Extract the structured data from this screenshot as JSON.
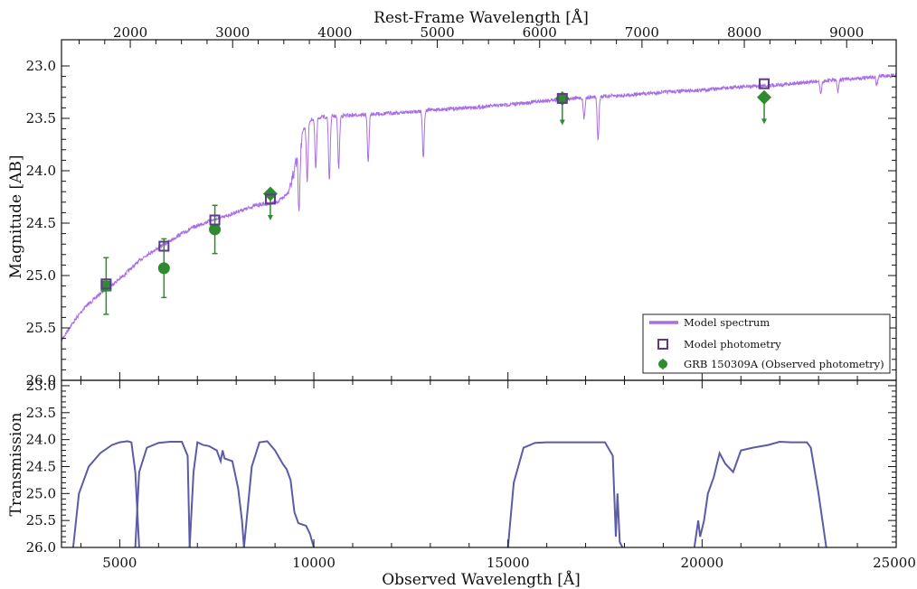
{
  "chart_data": {
    "type": "scatter",
    "top_axis_label": "Rest-Frame Wavelength [Å]",
    "xlabel": "Observed Wavelength [Å]",
    "ylabel_top": "Magnitude [AB]",
    "ylabel_bottom": "Transmission",
    "xlim": [
      3500,
      25000
    ],
    "ylim_top": [
      26.0,
      22.75
    ],
    "ylim_bottom": [
      26.0,
      22.9
    ],
    "bottom_x_ticks": [
      5000,
      10000,
      15000,
      20000,
      25000
    ],
    "top_x_ticks": [
      2000,
      3000,
      4000,
      5000,
      6000,
      7000,
      8000,
      9000
    ],
    "redshift_factor": 2.636,
    "top_y_ticks": [
      23.0,
      23.5,
      24.0,
      24.5,
      25.0,
      25.5,
      26.0
    ],
    "bottom_y_ticks": [
      23.0,
      23.5,
      24.0,
      24.5,
      25.0,
      25.5,
      26.0
    ],
    "colors": {
      "model_spectrum": "#a96ee6",
      "model_photometry": "#5e3a8c",
      "observed": "#2e8b2e",
      "transmission": "#5b5ba8"
    },
    "legend": {
      "placement": "lower-right",
      "entries": [
        "Model spectrum",
        "Model photometry",
        "GRB 150309A (Observed photometry)"
      ]
    },
    "model_spectrum": {
      "x": [
        3500,
        3700,
        3900,
        4100,
        4300,
        4500,
        4700,
        4900,
        5100,
        5300,
        5500,
        5700,
        5900,
        6100,
        6300,
        6500,
        6700,
        6900,
        7100,
        7300,
        7500,
        7700,
        7900,
        8100,
        8300,
        8500,
        8700,
        8900,
        9050,
        9200,
        9350,
        9450,
        9550,
        9650,
        9750,
        9850,
        10000,
        10200,
        10500,
        11000,
        11500,
        12000,
        12500,
        13000,
        13500,
        14000,
        15000,
        16000,
        17000,
        18000,
        19000,
        20000,
        21000,
        21500,
        22000,
        22500,
        23000,
        23500,
        24000,
        24500,
        25000
      ],
      "y": [
        25.62,
        25.5,
        25.4,
        25.3,
        25.24,
        25.17,
        25.12,
        25.06,
        25.0,
        24.93,
        24.86,
        24.8,
        24.76,
        24.71,
        24.67,
        24.62,
        24.58,
        24.54,
        24.51,
        24.48,
        24.46,
        24.44,
        24.41,
        24.38,
        24.36,
        24.33,
        24.32,
        24.31,
        24.3,
        24.26,
        24.2,
        24.0,
        23.85,
        23.7,
        23.6,
        23.53,
        23.5,
        23.49,
        23.48,
        23.47,
        23.46,
        23.45,
        23.44,
        23.42,
        23.41,
        23.4,
        23.37,
        23.33,
        23.3,
        23.28,
        23.25,
        23.23,
        23.2,
        23.19,
        23.18,
        23.16,
        23.15,
        23.13,
        23.12,
        23.1,
        23.09
      ]
    },
    "absorption_lines": [
      {
        "x": 9620,
        "depth": 0.6
      },
      {
        "x": 9830,
        "depth": 0.55
      },
      {
        "x": 10050,
        "depth": 0.48
      },
      {
        "x": 10400,
        "depth": 0.6
      },
      {
        "x": 10640,
        "depth": 0.5
      },
      {
        "x": 11400,
        "depth": 0.45
      },
      {
        "x": 12820,
        "depth": 0.44
      },
      {
        "x": 17320,
        "depth": 0.42
      },
      {
        "x": 16960,
        "depth": 0.2
      },
      {
        "x": 23060,
        "depth": 0.12
      },
      {
        "x": 23500,
        "depth": 0.12
      },
      {
        "x": 24500,
        "depth": 0.08
      }
    ],
    "model_photometry": {
      "x": [
        4650,
        6140,
        7450,
        8880,
        16400,
        21600
      ],
      "y": [
        25.08,
        24.72,
        24.47,
        24.27,
        23.31,
        23.17
      ]
    },
    "observed_photometry": {
      "points": [
        {
          "x": 4650,
          "y": 25.1,
          "err": 0.27,
          "marker": "square"
        },
        {
          "x": 6140,
          "y": 24.93,
          "err": 0.28,
          "marker": "circle"
        },
        {
          "x": 7450,
          "y": 24.56,
          "err": 0.23,
          "marker": "circle"
        },
        {
          "x": 8880,
          "y": 24.22,
          "err": 0.1,
          "marker": "diamond",
          "upper_limit": true
        },
        {
          "x": 16400,
          "y": 23.31,
          "err": 0.1,
          "marker": "diamond",
          "upper_limit": true
        },
        {
          "x": 21600,
          "y": 23.3,
          "err": 0.1,
          "marker": "diamond",
          "upper_limit": true
        }
      ]
    },
    "transmission_curves": [
      {
        "x": [
          3800,
          3950,
          4200,
          4500,
          4800,
          5000,
          5200,
          5300,
          5400,
          5500
        ],
        "y": [
          26.0,
          25.0,
          24.5,
          24.25,
          24.1,
          24.05,
          24.03,
          24.05,
          24.6,
          26.0
        ]
      },
      {
        "x": [
          5400,
          5500,
          5700,
          6000,
          6300,
          6600,
          6750,
          6800
        ],
        "y": [
          26.0,
          24.6,
          24.15,
          24.06,
          24.04,
          24.04,
          24.3,
          26.0
        ]
      },
      {
        "x": [
          6800,
          6900,
          7000,
          7150,
          7300,
          7500,
          7600,
          7650,
          7700,
          7900,
          8050,
          8150,
          8200
        ],
        "y": [
          26.0,
          24.6,
          24.05,
          24.1,
          24.12,
          24.2,
          24.4,
          24.2,
          24.35,
          24.4,
          24.9,
          25.5,
          26.0
        ]
      },
      {
        "x": [
          8200,
          8400,
          8600,
          8800,
          9000,
          9200,
          9300,
          9400,
          9500,
          9600,
          9800,
          9900,
          10000
        ],
        "y": [
          26.0,
          24.5,
          24.05,
          24.03,
          24.2,
          24.45,
          24.55,
          24.75,
          25.35,
          25.55,
          25.6,
          25.75,
          26.0
        ]
      },
      {
        "x": [
          15000,
          15150,
          15400,
          15700,
          16000,
          16500,
          17000,
          17500,
          17700,
          17780,
          17820,
          17880,
          17950
        ],
        "y": [
          26.0,
          24.8,
          24.15,
          24.06,
          24.05,
          24.05,
          24.05,
          24.05,
          24.3,
          25.8,
          25.0,
          25.9,
          26.0
        ]
      },
      {
        "x": [
          19800,
          19900,
          19950,
          20050,
          20150,
          20300,
          20450,
          20600,
          20800,
          21000,
          21300,
          21700,
          22000,
          22300,
          22700,
          22800,
          23000,
          23200
        ],
        "y": [
          26.0,
          25.5,
          25.8,
          25.5,
          25.0,
          24.7,
          24.25,
          24.45,
          24.6,
          24.2,
          24.15,
          24.1,
          24.04,
          24.05,
          24.05,
          24.15,
          25.0,
          26.0
        ]
      }
    ]
  }
}
